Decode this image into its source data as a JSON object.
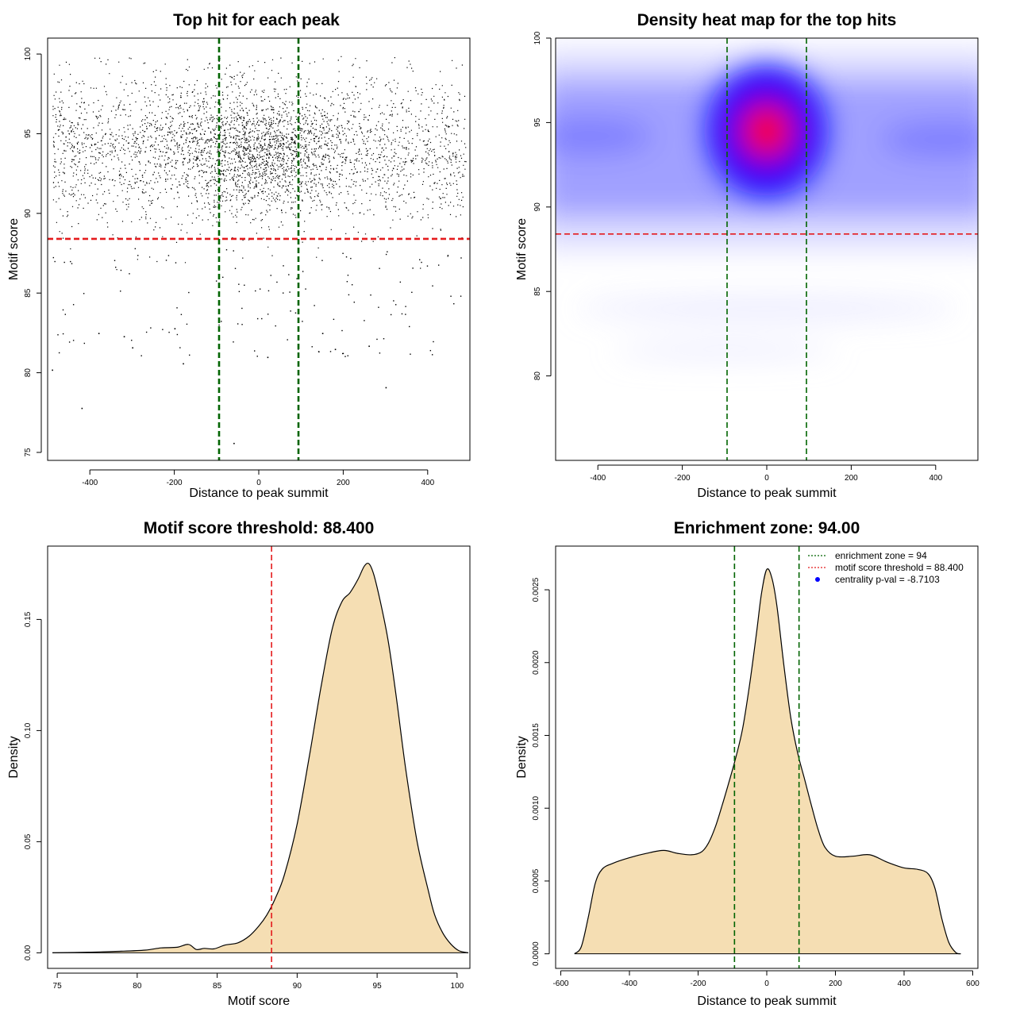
{
  "chart_data": [
    {
      "type": "scatter",
      "title": "Top hit for each peak",
      "xlabel": "Distance to peak summit",
      "ylabel": "Motif score",
      "xlim": [
        -500,
        500
      ],
      "ylim": [
        74.5,
        101
      ],
      "xticks": [
        -400,
        -200,
        0,
        200,
        400
      ],
      "yticks": [
        75,
        80,
        85,
        90,
        95,
        100
      ],
      "reference_lines": [
        {
          "orientation": "horizontal",
          "value": 88.4,
          "color": "#e41a1c"
        },
        {
          "orientation": "vertical",
          "value": -94,
          "color": "#006400"
        },
        {
          "orientation": "vertical",
          "value": 94,
          "color": "#006400"
        }
      ],
      "points_description_estimate": {
        "n_points_approx": 14000,
        "x_range": [
          -490,
          490
        ],
        "y_core": [
          88,
          100
        ],
        "y_center": 94,
        "concentration": "centered near x=0, y=94"
      },
      "outlier_points": [
        [
          -490,
          80.2
        ],
        [
          -420,
          77.8
        ],
        [
          -180,
          80.6
        ],
        [
          -60,
          75.6
        ],
        [
          300,
          79.1
        ],
        [
          -320,
          82.3
        ],
        [
          180,
          81.5
        ],
        [
          260,
          81.7
        ],
        [
          -380,
          82.5
        ],
        [
          -300,
          81.6
        ],
        [
          150,
          82.5
        ],
        [
          -200,
          82.8
        ],
        [
          20,
          81.0
        ]
      ]
    },
    {
      "type": "heatmap",
      "title": "Density heat map for the top hits",
      "xlabel": "Distance to peak summit",
      "ylabel": "Motif score",
      "xlim": [
        -500,
        500
      ],
      "ylim": [
        75,
        100
      ],
      "xticks": [
        -400,
        -200,
        0,
        200,
        400
      ],
      "yticks": [
        80,
        85,
        90,
        95,
        100
      ],
      "colormap": [
        "#ffffff",
        "#0000ff",
        "#ff0000"
      ],
      "peak": {
        "x": 0,
        "y": 94.5
      },
      "reference_lines": [
        {
          "orientation": "horizontal",
          "value": 88.4,
          "color": "#e41a1c"
        },
        {
          "orientation": "vertical",
          "value": -94,
          "color": "#006400"
        },
        {
          "orientation": "vertical",
          "value": 94,
          "color": "#006400"
        }
      ]
    },
    {
      "type": "area",
      "title": "Motif score threshold: 88.400",
      "xlabel": "Motif score",
      "ylabel": "Density",
      "xlim": [
        74.4,
        100.8
      ],
      "ylim": [
        -0.007,
        0.183
      ],
      "xticks": [
        75,
        80,
        85,
        90,
        95,
        100
      ],
      "yticks": [
        0.0,
        0.05,
        0.1,
        0.15
      ],
      "ytick_labels": [
        "0.00",
        "0.05",
        "0.10",
        "0.15"
      ],
      "fill": "#f5deb3",
      "x": [
        74.7,
        77,
        79,
        80.5,
        81.5,
        82.5,
        83.2,
        83.7,
        84.2,
        84.8,
        85.5,
        86.3,
        87,
        87.6,
        88.1,
        88.6,
        89.2,
        90,
        90.8,
        91.5,
        92.2,
        92.8,
        93.3,
        93.8,
        94.2,
        94.5,
        94.8,
        95.2,
        95.7,
        96.2,
        96.8,
        97.5,
        98.2,
        98.6,
        99.1,
        99.6,
        100.1,
        100.7
      ],
      "y": [
        0.0,
        0.0003,
        0.0007,
        0.0012,
        0.0022,
        0.0025,
        0.0038,
        0.0015,
        0.002,
        0.0018,
        0.0035,
        0.0045,
        0.0075,
        0.012,
        0.017,
        0.024,
        0.035,
        0.058,
        0.09,
        0.12,
        0.146,
        0.158,
        0.162,
        0.168,
        0.174,
        0.175,
        0.17,
        0.158,
        0.14,
        0.115,
        0.082,
        0.05,
        0.028,
        0.017,
        0.009,
        0.004,
        0.001,
        0.0
      ]
    },
    {
      "type": "area",
      "title": "Enrichment zone: 94.00",
      "xlabel": "Distance to peak summit",
      "ylabel": "Density",
      "xlim": [
        -615,
        615
      ],
      "ylim": [
        -0.0001,
        0.0028
      ],
      "xticks": [
        -600,
        -400,
        -200,
        0,
        200,
        400,
        600
      ],
      "yticks": [
        0.0,
        0.0005,
        0.001,
        0.0015,
        0.002,
        0.0025
      ],
      "ytick_labels": [
        "0.0000",
        "0.0005",
        "0.0010",
        "0.0015",
        "0.0020",
        "0.0025"
      ],
      "fill": "#f5deb3",
      "x": [
        -560,
        -540,
        -520,
        -500,
        -480,
        -450,
        -400,
        -350,
        -300,
        -260,
        -220,
        -190,
        -170,
        -150,
        -130,
        -110,
        -90,
        -70,
        -50,
        -30,
        -15,
        0,
        15,
        30,
        50,
        70,
        90,
        110,
        130,
        150,
        170,
        200,
        250,
        300,
        350,
        400,
        440,
        470,
        490,
        510,
        530,
        550,
        565
      ],
      "y": [
        0.0,
        5e-05,
        0.00025,
        0.00048,
        0.00058,
        0.00062,
        0.00066,
        0.00069,
        0.00071,
        0.00069,
        0.00068,
        0.0007,
        0.00076,
        0.00087,
        0.00102,
        0.00118,
        0.00135,
        0.00155,
        0.00185,
        0.0022,
        0.00248,
        0.00264,
        0.00258,
        0.00238,
        0.00198,
        0.00162,
        0.00138,
        0.0012,
        0.00102,
        0.00085,
        0.00073,
        0.00067,
        0.00067,
        0.00068,
        0.00063,
        0.00059,
        0.00058,
        0.00055,
        0.00045,
        0.00024,
        8e-05,
        1e-05,
        0.0
      ],
      "legend": {
        "placement": "top-right",
        "entries": [
          {
            "label": "enrichment zone = 94",
            "color": "#006400",
            "style": "dotted"
          },
          {
            "label": "motif score threshold = 88.400",
            "color": "#e41a1c",
            "style": "dotted"
          },
          {
            "label": "centrality p-val = -8.7103",
            "color": "#0000ff",
            "style": "point"
          }
        ]
      },
      "reference_lines": [
        {
          "orientation": "vertical",
          "value": -94,
          "color": "#006400"
        },
        {
          "orientation": "vertical",
          "value": 94,
          "color": "#006400"
        }
      ]
    }
  ]
}
